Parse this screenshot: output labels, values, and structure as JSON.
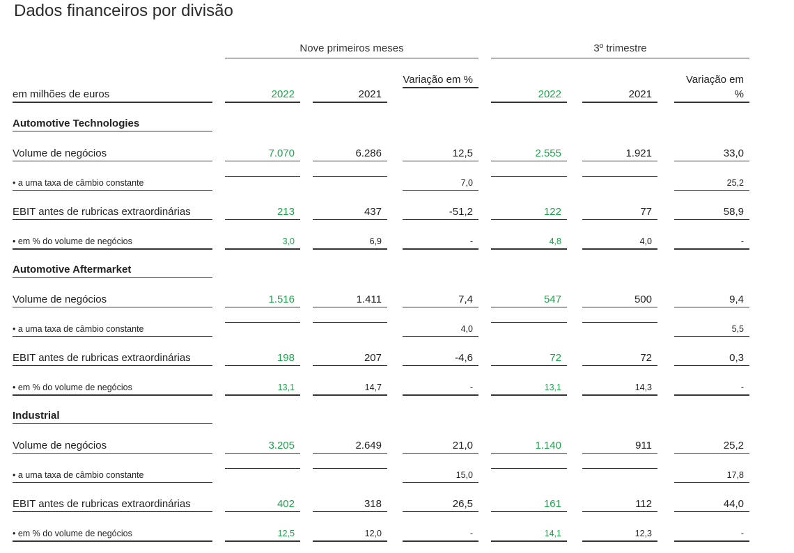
{
  "title": "Dados financeiros por divisão",
  "periods": {
    "nine_months": "Nove primeiros meses",
    "q3": "3º trimestre"
  },
  "columns": {
    "unit_label": "em milhões de euros",
    "nine_months": {
      "y2022": "2022",
      "y2021": "2021",
      "change": "Variação em %"
    },
    "q3": {
      "y2022": "2022",
      "y2021": "2021",
      "change": "Variação em %"
    }
  },
  "accent_color": "#19a64a",
  "sections": [
    {
      "name": "Automotive Technologies",
      "rows": [
        {
          "label": "Volume de negócios",
          "kind": "main",
          "values": [
            "7.070",
            "6.286",
            "12,5",
            "2.555",
            "1.921",
            "33,0"
          ]
        },
        {
          "label": "• a uma taxa de câmbio constante",
          "kind": "sub",
          "values": [
            "",
            "",
            "7,0",
            "",
            "",
            "25,2"
          ]
        },
        {
          "label": "EBIT antes de rubricas extraordinárias",
          "kind": "main",
          "values": [
            "213",
            "437",
            "-51,2",
            "122",
            "77",
            "58,9"
          ]
        },
        {
          "label": "• em % do volume de negócios",
          "kind": "sub",
          "values": [
            "3,0",
            "6,9",
            "-",
            "4,8",
            "4,0",
            "-"
          ]
        }
      ]
    },
    {
      "name": "Automotive Aftermarket",
      "rows": [
        {
          "label": "Volume de negócios",
          "kind": "main",
          "values": [
            "1.516",
            "1.411",
            "7,4",
            "547",
            "500",
            "9,4"
          ]
        },
        {
          "label": "• a uma taxa de câmbio constante",
          "kind": "sub",
          "values": [
            "",
            "",
            "4,0",
            "",
            "",
            "5,5"
          ]
        },
        {
          "label": "EBIT antes de rubricas extraordinárias",
          "kind": "main",
          "values": [
            "198",
            "207",
            "-4,6",
            "72",
            "72",
            "0,3"
          ]
        },
        {
          "label": "• em % do volume de negócios",
          "kind": "sub",
          "values": [
            "13,1",
            "14,7",
            "-",
            "13,1",
            "14,3",
            "-"
          ]
        }
      ]
    },
    {
      "name": "Industrial",
      "rows": [
        {
          "label": "Volume de negócios",
          "kind": "main",
          "values": [
            "3.205",
            "2.649",
            "21,0",
            "1.140",
            "911",
            "25,2"
          ]
        },
        {
          "label": "• a uma taxa de câmbio constante",
          "kind": "sub",
          "values": [
            "",
            "",
            "15,0",
            "",
            "",
            "17,8"
          ]
        },
        {
          "label": "EBIT antes de rubricas extraordinárias",
          "kind": "main",
          "values": [
            "402",
            "318",
            "26,5",
            "161",
            "112",
            "44,0"
          ]
        },
        {
          "label": "• em % do volume de negócios",
          "kind": "sub",
          "values": [
            "12,5",
            "12,0",
            "-",
            "14,1",
            "12,3",
            "-"
          ]
        }
      ]
    }
  ]
}
